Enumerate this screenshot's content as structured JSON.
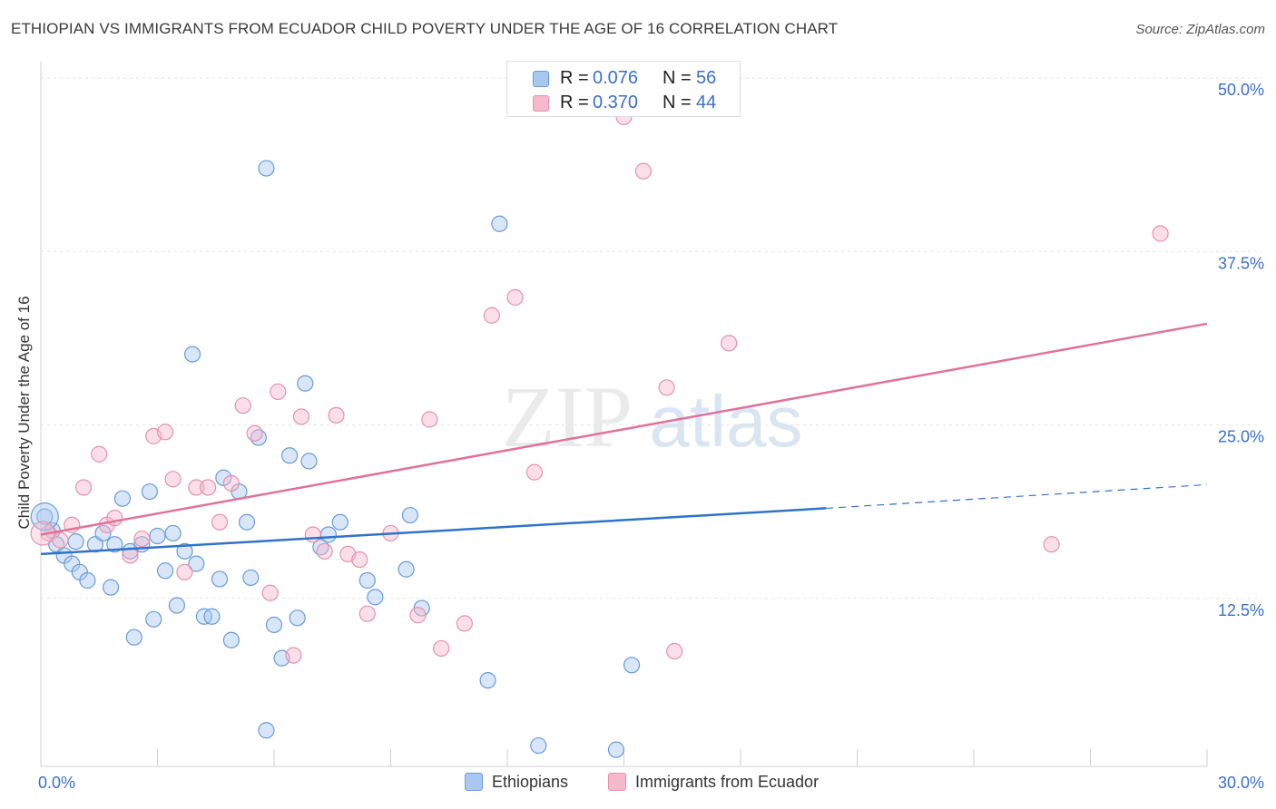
{
  "title": "ETHIOPIAN VS IMMIGRANTS FROM ECUADOR CHILD POVERTY UNDER THE AGE OF 16 CORRELATION CHART",
  "source": "Source: ZipAtlas.com",
  "watermark": {
    "zip": "ZIP",
    "atlas": "atlas"
  },
  "legend_top": [
    {
      "r_label": "R = ",
      "r_value": "0.076",
      "n_label": "N = ",
      "n_value": "56",
      "color": "#a9c8f0"
    },
    {
      "r_label": "R = ",
      "r_value": "0.370",
      "n_label": "N = ",
      "n_value": "44",
      "color": "#f6b9cc"
    }
  ],
  "chart_data": {
    "type": "scatter",
    "title": "ETHIOPIAN VS IMMIGRANTS FROM ECUADOR CHILD POVERTY UNDER THE AGE OF 16 CORRELATION CHART",
    "xlabel": "",
    "ylabel": "Child Poverty Under the Age of 16",
    "xlim": [
      0,
      30
    ],
    "ylim": [
      0,
      50
    ],
    "x_tick_labels": [
      "0.0%",
      "30.0%"
    ],
    "y_ticks": [
      12.5,
      25.0,
      37.5,
      50.0
    ],
    "y_tick_labels": [
      "12.5%",
      "25.0%",
      "37.5%",
      "50.0%"
    ],
    "grid": true,
    "legend_placement": "top-center",
    "series": [
      {
        "name": "Ethiopians",
        "color": "#a9c8f0",
        "stroke": "#6a9bd8",
        "line_color": "#2f73c9",
        "trend": {
          "x0": 0,
          "y0": 15.3,
          "x1": 20.2,
          "y1": 18.6,
          "dash_x1": 30,
          "dash_y1": 20.3
        },
        "points": [
          [
            0.1,
            18.0
          ],
          [
            0.3,
            17.0
          ],
          [
            0.4,
            16.0
          ],
          [
            0.6,
            15.2
          ],
          [
            0.8,
            14.6
          ],
          [
            0.9,
            16.2
          ],
          [
            1.0,
            14.0
          ],
          [
            1.2,
            13.4
          ],
          [
            1.4,
            16.0
          ],
          [
            1.6,
            16.8
          ],
          [
            1.8,
            12.9
          ],
          [
            1.9,
            16.0
          ],
          [
            2.1,
            19.3
          ],
          [
            2.3,
            15.5
          ],
          [
            2.4,
            9.3
          ],
          [
            2.6,
            16.0
          ],
          [
            2.8,
            19.8
          ],
          [
            2.9,
            10.6
          ],
          [
            3.0,
            16.6
          ],
          [
            3.2,
            14.1
          ],
          [
            3.4,
            16.8
          ],
          [
            3.5,
            11.6
          ],
          [
            3.7,
            15.5
          ],
          [
            3.9,
            29.7
          ],
          [
            4.0,
            14.6
          ],
          [
            4.2,
            10.8
          ],
          [
            4.4,
            10.8
          ],
          [
            4.6,
            13.5
          ],
          [
            4.7,
            20.8
          ],
          [
            4.9,
            9.1
          ],
          [
            5.1,
            19.8
          ],
          [
            5.3,
            17.6
          ],
          [
            5.4,
            13.6
          ],
          [
            5.6,
            23.7
          ],
          [
            5.8,
            2.6
          ],
          [
            5.8,
            43.1
          ],
          [
            6.0,
            10.2
          ],
          [
            6.2,
            7.8
          ],
          [
            6.4,
            22.4
          ],
          [
            6.6,
            10.7
          ],
          [
            6.8,
            27.6
          ],
          [
            6.9,
            22.0
          ],
          [
            7.2,
            15.8
          ],
          [
            7.4,
            16.7
          ],
          [
            7.7,
            17.6
          ],
          [
            8.4,
            13.4
          ],
          [
            8.6,
            12.2
          ],
          [
            9.4,
            14.2
          ],
          [
            9.5,
            18.1
          ],
          [
            9.8,
            11.4
          ],
          [
            11.5,
            6.2
          ],
          [
            11.8,
            39.1
          ],
          [
            12.8,
            1.5
          ],
          [
            14.8,
            1.2
          ],
          [
            15.2,
            7.3
          ],
          [
            17.0,
            48.9
          ]
        ]
      },
      {
        "name": "Immigrants from Ecuador",
        "color": "#f6b9cc",
        "stroke": "#e691ad",
        "line_color": "#e0729a",
        "trend": {
          "x0": 0,
          "y0": 16.7,
          "x1": 30,
          "y1": 31.9
        },
        "points": [
          [
            0.2,
            16.8
          ],
          [
            0.5,
            16.3
          ],
          [
            0.8,
            17.4
          ],
          [
            1.1,
            20.1
          ],
          [
            1.5,
            22.5
          ],
          [
            1.7,
            17.4
          ],
          [
            1.9,
            17.9
          ],
          [
            2.3,
            15.2
          ],
          [
            2.6,
            16.4
          ],
          [
            2.9,
            23.8
          ],
          [
            3.2,
            24.1
          ],
          [
            3.4,
            20.7
          ],
          [
            3.7,
            14.0
          ],
          [
            4.0,
            20.1
          ],
          [
            4.3,
            20.1
          ],
          [
            4.6,
            17.6
          ],
          [
            4.9,
            20.4
          ],
          [
            5.2,
            26.0
          ],
          [
            5.5,
            24.0
          ],
          [
            5.9,
            12.5
          ],
          [
            6.1,
            27.0
          ],
          [
            6.5,
            8.0
          ],
          [
            6.7,
            25.2
          ],
          [
            7.0,
            16.7
          ],
          [
            7.3,
            15.5
          ],
          [
            7.6,
            25.3
          ],
          [
            7.9,
            15.3
          ],
          [
            8.2,
            14.9
          ],
          [
            8.4,
            11.0
          ],
          [
            9.0,
            16.8
          ],
          [
            9.7,
            10.9
          ],
          [
            10.0,
            25.0
          ],
          [
            10.3,
            8.5
          ],
          [
            10.9,
            10.3
          ],
          [
            11.6,
            32.5
          ],
          [
            12.2,
            33.8
          ],
          [
            12.7,
            21.2
          ],
          [
            15.0,
            46.8
          ],
          [
            15.5,
            42.9
          ],
          [
            16.1,
            27.3
          ],
          [
            16.3,
            8.3
          ],
          [
            17.7,
            30.5
          ],
          [
            26.0,
            16.0
          ],
          [
            28.8,
            38.4
          ]
        ]
      }
    ]
  }
}
